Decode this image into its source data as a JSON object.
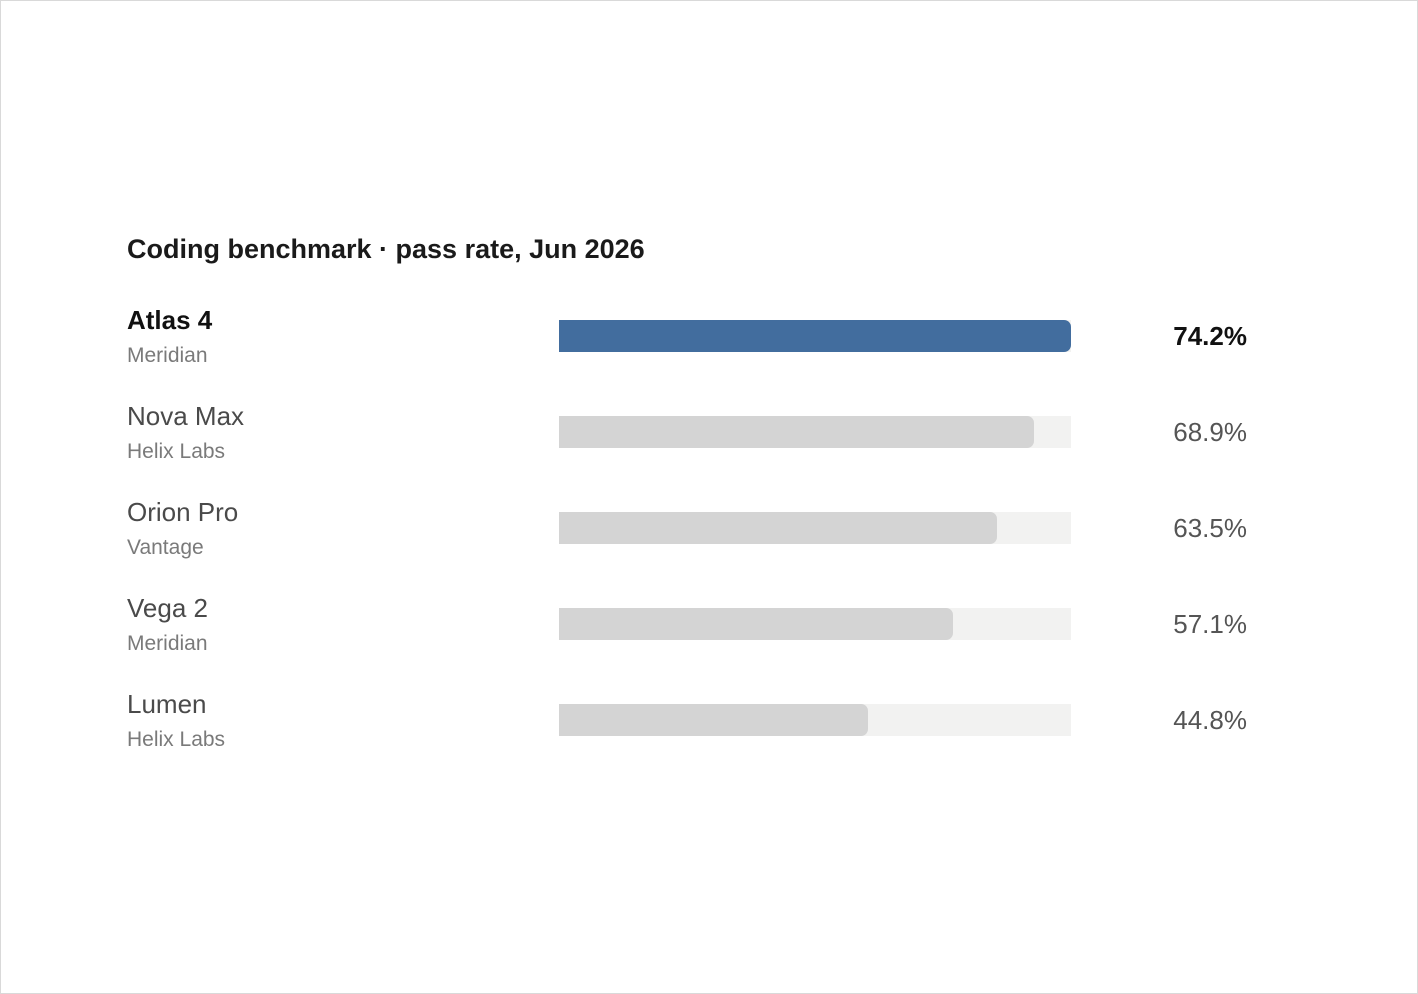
{
  "chart_data": {
    "type": "bar",
    "orientation": "horizontal",
    "title": "Coding benchmark · pass rate, Jun 2026",
    "xlabel": "",
    "ylabel": "",
    "xlim": [
      0,
      74.2
    ],
    "grid": false,
    "legend": "none",
    "highlight_color": "#426d9e",
    "base_color": "#d4d4d4",
    "track_color": "#f2f2f1",
    "categories": [
      "Atlas 4",
      "Nova Max",
      "Orion Pro",
      "Vega 2",
      "Lumen"
    ],
    "bars": [
      {
        "model": "Atlas 4",
        "vendor": "Meridian",
        "value": 74.2,
        "label": "74.2%",
        "highlight": true
      },
      {
        "model": "Nova Max",
        "vendor": "Helix Labs",
        "value": 68.9,
        "label": "68.9%",
        "highlight": false
      },
      {
        "model": "Orion Pro",
        "vendor": "Vantage",
        "value": 63.5,
        "label": "63.5%",
        "highlight": false
      },
      {
        "model": "Vega 2",
        "vendor": "Meridian",
        "value": 57.1,
        "label": "57.1%",
        "highlight": false
      },
      {
        "model": "Lumen",
        "vendor": "Helix Labs",
        "value": 44.8,
        "label": "44.8%",
        "highlight": false
      }
    ]
  }
}
